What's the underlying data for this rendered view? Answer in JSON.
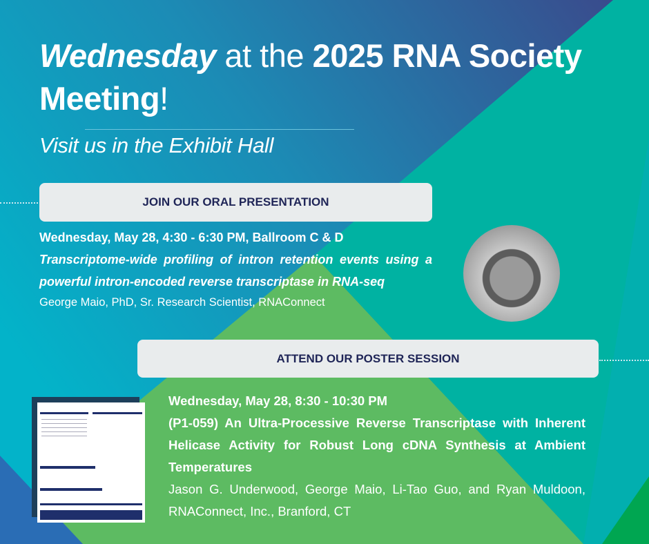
{
  "title": {
    "italic": "Wednesday",
    "light": " at the ",
    "bold": "2025 RNA Society Meeting",
    "end": "!"
  },
  "subtitle": "Visit us in the Exhibit Hall",
  "oral": {
    "header": "JOIN OUR ORAL PRESENTATION",
    "when": "Wednesday, May 28, 4:30 - 6:30 PM, Ballroom C & D",
    "talk_title": "Transcriptome-wide profiling of intron retention events using a powerful intron-encoded reverse transcriptase in RNA-seq",
    "speaker": "George Maio, PhD, Sr. Research Scientist, RNAConnect"
  },
  "poster": {
    "header": "ATTEND OUR POSTER SESSION",
    "when": "Wednesday, May 28, 8:30 - 10:30 PM",
    "poster_title": "(P1-059) An Ultra-Processive Reverse Transcriptase with Inherent Helicase Activity for Robust Long cDNA Synthesis at Ambient Temperatures",
    "authors": "Jason G. Underwood, George Maio, Li-Tao Guo, and Ryan Muldoon, RNAConnect, Inc., Branford, CT"
  },
  "colors": {
    "cyan": "#03b3c9",
    "navy": "#3a4a8f",
    "teal": "#00b3a0",
    "green": "#5dbb62",
    "dark_green": "#00a651",
    "corner_blue": "#2a6db5",
    "box": "#e9eced",
    "box_text": "#1f2557"
  }
}
